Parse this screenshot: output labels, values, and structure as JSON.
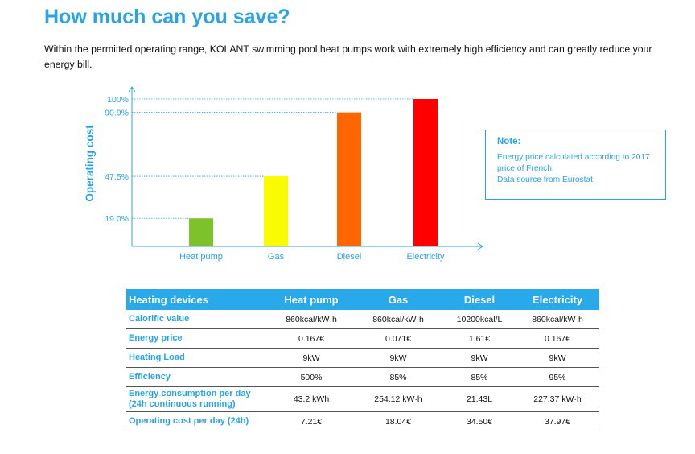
{
  "header": {
    "title": "How much can you save?",
    "intro": "Within the permitted operating range, KOLANT swimming pool heat pumps work with extremely high efficiency and can greatly reduce your energy bill."
  },
  "chart_data": {
    "type": "bar",
    "ylabel": "Operating cost",
    "categories": [
      "Heat pump",
      "Gas",
      "Diesel",
      "Electricity"
    ],
    "values": [
      19.0,
      47.5,
      90.9,
      100
    ],
    "value_labels": [
      "19.0%",
      "47.5%",
      "90.9%",
      "100%"
    ],
    "colors": [
      "#7dc22a",
      "#fbfb00",
      "#ff6600",
      "#ff0000"
    ],
    "ylim": [
      0,
      100
    ],
    "grid": "dotted reference lines at each bar value"
  },
  "note": {
    "title": "Note:",
    "lines": [
      "Energy price calculated according to 2017",
      "price of French.",
      "Data source from Eurostat"
    ]
  },
  "table": {
    "columns": [
      "Heating devices",
      "Heat pump",
      "Gas",
      "Diesel",
      "Electricity"
    ],
    "rows": [
      {
        "label": "Calorific value",
        "values": [
          "860kcal/kW·h",
          "860kcal/kW·h",
          "10200kcal/L",
          "860kcal/kW·h"
        ]
      },
      {
        "label": "Energy price",
        "values": [
          "0.167€",
          "0.071€",
          "1.61€",
          "0.167€"
        ]
      },
      {
        "label": "Heating  Load",
        "values": [
          "9kW",
          "9kW",
          "9kW",
          "9kW"
        ]
      },
      {
        "label": "Efficiency",
        "values": [
          "500%",
          "85%",
          "85%",
          "95%"
        ]
      },
      {
        "label_lines": [
          "Energy consumption per day",
          "(24h continuous running)"
        ],
        "values": [
          "43.2 kWh",
          "254.12 kW·h",
          "21.43L",
          "227.37 kW·h"
        ]
      },
      {
        "label": "Operating cost per day (24h)",
        "values": [
          "7.21€",
          "18.04€",
          "34.50€",
          "37.97€"
        ]
      }
    ]
  }
}
